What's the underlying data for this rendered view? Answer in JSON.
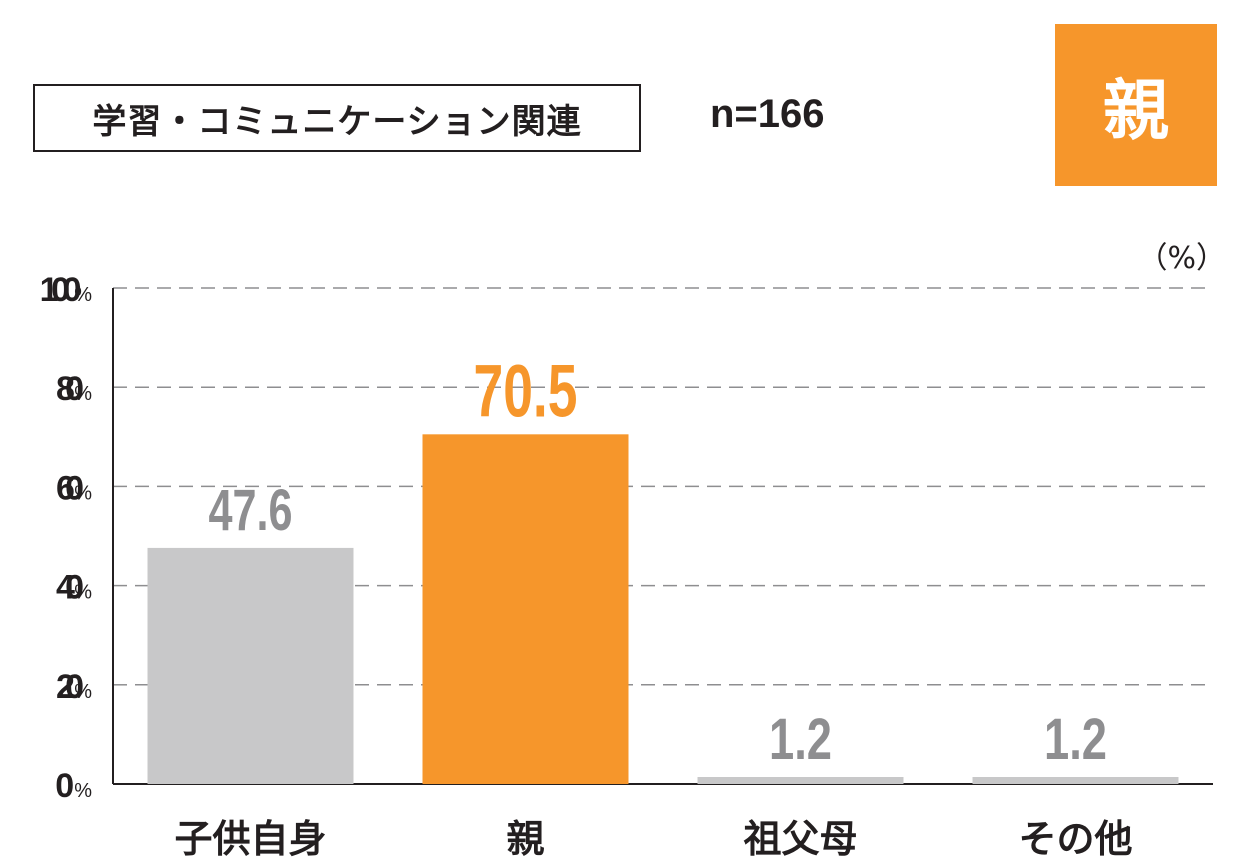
{
  "header": {
    "category_label": "学習・コミュニケーション関連",
    "sample_size": "n=166",
    "highlight_label": "親"
  },
  "colors": {
    "highlight": "#f6962b",
    "bar_default": "#c8c8c9",
    "label_default": "#8e8e90",
    "axis": "#231f20",
    "grid": "#8e8e90"
  },
  "chart_data": {
    "type": "bar",
    "unit_label": "（%）",
    "categories": [
      "子供自身",
      "親",
      "祖父母",
      "その他"
    ],
    "values": [
      47.6,
      70.5,
      1.2,
      1.2
    ],
    "value_labels": [
      "47.6",
      "70.5",
      "1.2",
      "1.2"
    ],
    "highlight_index": 1,
    "ylim": [
      0,
      100
    ],
    "yticks": [
      0,
      20,
      40,
      60,
      80,
      100
    ],
    "ytick_labels": [
      "0",
      "20",
      "40",
      "60",
      "80",
      "100"
    ],
    "ytick_suffix": "%",
    "grid": true,
    "xlabel": "",
    "ylabel": ""
  }
}
